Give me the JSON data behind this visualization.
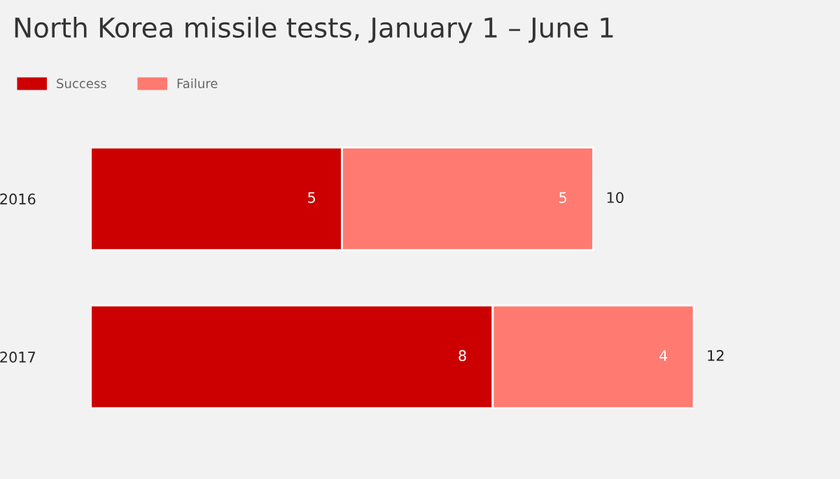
{
  "chart_data": {
    "type": "bar",
    "orientation": "horizontal",
    "stacked": true,
    "title": "North Korea missile tests, January 1 – June 1",
    "categories": [
      "2016",
      "2017"
    ],
    "series": [
      {
        "name": "Success",
        "color": "#cc0000",
        "values": [
          5,
          8
        ]
      },
      {
        "name": "Failure",
        "color": "#ff7a70",
        "values": [
          5,
          4
        ]
      }
    ],
    "data_labels": true,
    "totals": [
      "10",
      "12"
    ],
    "legend": "top left",
    "grid": false,
    "tick_labels": "y"
  }
}
